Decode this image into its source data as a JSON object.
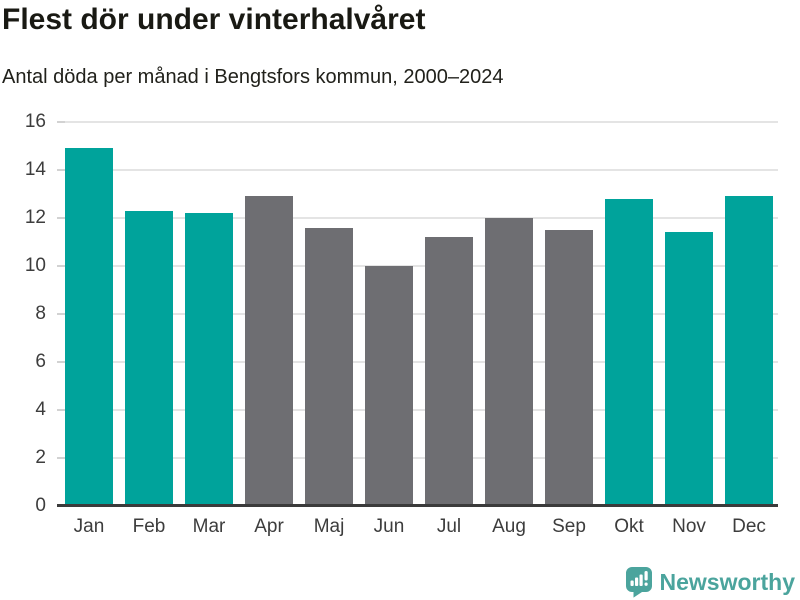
{
  "header": {
    "title": "Flest dör under vinterhalvåret",
    "subtitle": "Antal döda per månad i Bengtsfors kommun, 2000–2024"
  },
  "chart_data": {
    "type": "bar",
    "title": "Flest dör under vinterhalvåret",
    "subtitle": "Antal döda per månad i Bengtsfors kommun, 2000–2024",
    "categories": [
      "Jan",
      "Feb",
      "Mar",
      "Apr",
      "Maj",
      "Jun",
      "Jul",
      "Aug",
      "Sep",
      "Okt",
      "Nov",
      "Dec"
    ],
    "values": [
      14.9,
      12.3,
      12.2,
      12.9,
      11.6,
      10.0,
      11.2,
      12.0,
      11.5,
      12.8,
      11.4,
      12.9
    ],
    "bar_groups": [
      "highlight",
      "highlight",
      "highlight",
      "neutral",
      "neutral",
      "neutral",
      "neutral",
      "neutral",
      "neutral",
      "highlight",
      "highlight",
      "highlight"
    ],
    "colors": {
      "highlight": "#00a39b",
      "neutral": "#6e6e72"
    },
    "xlabel": "",
    "ylabel": "",
    "ylim": [
      0,
      16
    ],
    "yticks": [
      0,
      2,
      4,
      6,
      8,
      10,
      12,
      14,
      16
    ],
    "grid": true,
    "legend": "none"
  },
  "footer": {
    "brand": "Newsworthy",
    "logo_icon": "bar-chart-speech-bubble-icon",
    "brand_color": "#4ba49d"
  }
}
